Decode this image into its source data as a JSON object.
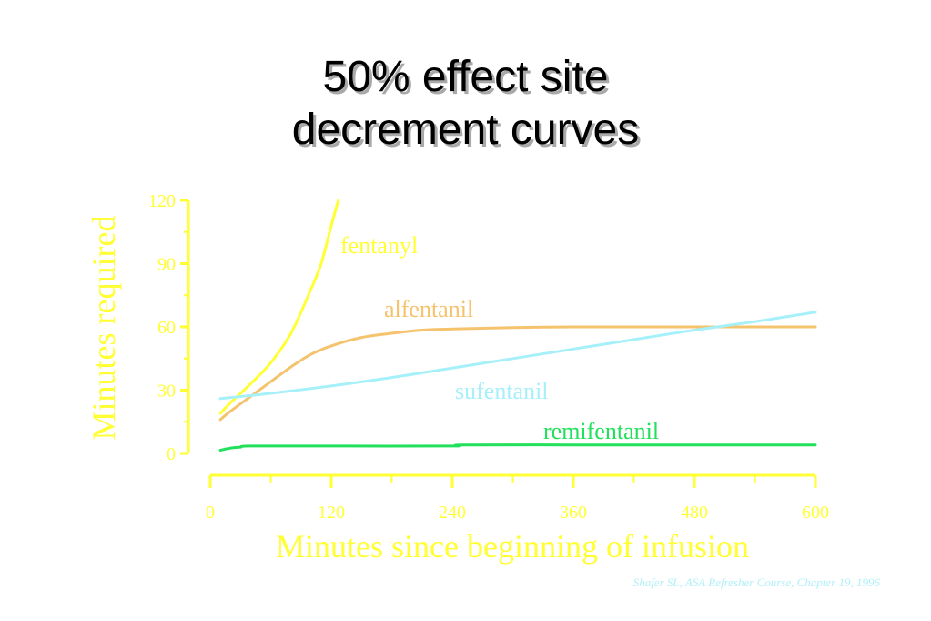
{
  "slide": {
    "title_line1": "50% effect site",
    "title_line2": "decrement curves",
    "credit": "Shafer SL, ASA Refresher Course, Chapter 19, 1996"
  },
  "colors": {
    "axis": "#ffff33",
    "fentanyl": "#ffff33",
    "alfentanil": "#f5c36e",
    "sufentanil": "#a6f0fa",
    "remifentanil": "#22e05c",
    "credit": "#b0f0f8"
  },
  "chart_data": {
    "type": "line",
    "title": "50% effect site decrement curves",
    "xlabel": "Minutes since beginning of infusion",
    "ylabel": "Minutes required",
    "xlim": [
      0,
      600
    ],
    "ylim": [
      0,
      120
    ],
    "xticks": [
      0,
      120,
      240,
      360,
      480,
      600
    ],
    "yticks": [
      0,
      30,
      60,
      90,
      120
    ],
    "grid": false,
    "legend": "inline labels",
    "series": [
      {
        "name": "fentanyl",
        "label": "fentanyl",
        "color": "#ffff33",
        "x": [
          10,
          20,
          40,
          60,
          80,
          100,
          110,
          120,
          127
        ],
        "y": [
          19,
          24,
          33,
          43,
          57,
          78,
          90,
          108,
          120
        ]
      },
      {
        "name": "alfentanil",
        "label": "alfentanil",
        "color": "#f5c36e",
        "x": [
          10,
          20,
          40,
          60,
          80,
          100,
          120,
          150,
          180,
          210,
          240,
          300,
          360,
          420,
          480,
          540,
          600
        ],
        "y": [
          16,
          20,
          27,
          34,
          41,
          47,
          51,
          55,
          57,
          58.5,
          59,
          59.7,
          60,
          60,
          60,
          60,
          60
        ]
      },
      {
        "name": "sufentanil",
        "label": "sufentanil",
        "color": "#a6f0fa",
        "x": [
          10,
          60,
          120,
          180,
          240,
          300,
          360,
          420,
          480,
          540,
          600
        ],
        "y": [
          26,
          28.5,
          32,
          36,
          40.5,
          45,
          49.5,
          54,
          58.5,
          62.5,
          67
        ]
      },
      {
        "name": "remifentanil",
        "label": "remifentanil",
        "color": "#22e05c",
        "x": [
          10,
          20,
          30,
          40,
          120,
          240,
          250,
          360,
          480,
          600
        ],
        "y": [
          1.5,
          2.5,
          3,
          3.5,
          3.5,
          3.5,
          4,
          4,
          4,
          4
        ]
      }
    ]
  }
}
